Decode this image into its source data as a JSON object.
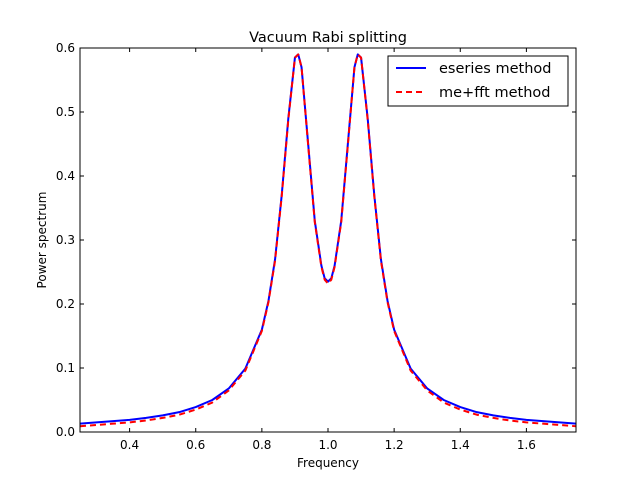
{
  "chart_data": {
    "type": "line",
    "title": "Vacuum Rabi splitting",
    "xlabel": "Frequency",
    "ylabel": "Power spectrum",
    "xlim": [
      0.25,
      1.75
    ],
    "ylim": [
      0.0,
      0.6
    ],
    "xticks": [
      0.4,
      0.6,
      0.8,
      1.0,
      1.2,
      1.4,
      1.6
    ],
    "xtick_labels": [
      "0.4",
      "0.6",
      "0.8",
      "1.0",
      "1.2",
      "1.4",
      "1.6"
    ],
    "yticks": [
      0.0,
      0.1,
      0.2,
      0.3,
      0.4,
      0.5,
      0.6
    ],
    "ytick_labels": [
      "0.0",
      "0.1",
      "0.2",
      "0.3",
      "0.4",
      "0.5",
      "0.6"
    ],
    "grid": false,
    "legend_position": "top-right",
    "x": [
      0.25,
      0.3,
      0.35,
      0.4,
      0.45,
      0.5,
      0.55,
      0.6,
      0.65,
      0.7,
      0.75,
      0.8,
      0.82,
      0.84,
      0.86,
      0.88,
      0.9,
      0.91,
      0.92,
      0.94,
      0.96,
      0.98,
      0.99,
      1.0,
      1.01,
      1.02,
      1.04,
      1.06,
      1.08,
      1.09,
      1.1,
      1.12,
      1.14,
      1.16,
      1.18,
      1.2,
      1.25,
      1.3,
      1.35,
      1.4,
      1.45,
      1.5,
      1.55,
      1.6,
      1.65,
      1.7,
      1.75
    ],
    "series": [
      {
        "name": "eseries method",
        "color": "#0000ff",
        "style": "solid",
        "values": [
          0.013,
          0.015,
          0.017,
          0.019,
          0.022,
          0.026,
          0.031,
          0.039,
          0.05,
          0.068,
          0.099,
          0.16,
          0.205,
          0.27,
          0.37,
          0.49,
          0.585,
          0.59,
          0.57,
          0.45,
          0.33,
          0.26,
          0.24,
          0.235,
          0.24,
          0.26,
          0.33,
          0.45,
          0.57,
          0.59,
          0.585,
          0.49,
          0.37,
          0.27,
          0.205,
          0.16,
          0.099,
          0.068,
          0.05,
          0.039,
          0.031,
          0.026,
          0.022,
          0.019,
          0.017,
          0.015,
          0.013
        ]
      },
      {
        "name": "me+fft method",
        "color": "#ff0000",
        "style": "dashed",
        "values": [
          0.009,
          0.011,
          0.013,
          0.015,
          0.018,
          0.022,
          0.027,
          0.035,
          0.046,
          0.065,
          0.096,
          0.158,
          0.203,
          0.268,
          0.368,
          0.488,
          0.585,
          0.59,
          0.57,
          0.448,
          0.328,
          0.258,
          0.238,
          0.232,
          0.238,
          0.258,
          0.328,
          0.448,
          0.57,
          0.59,
          0.585,
          0.488,
          0.368,
          0.268,
          0.203,
          0.158,
          0.096,
          0.065,
          0.046,
          0.035,
          0.027,
          0.022,
          0.018,
          0.015,
          0.013,
          0.011,
          0.009
        ]
      }
    ]
  }
}
